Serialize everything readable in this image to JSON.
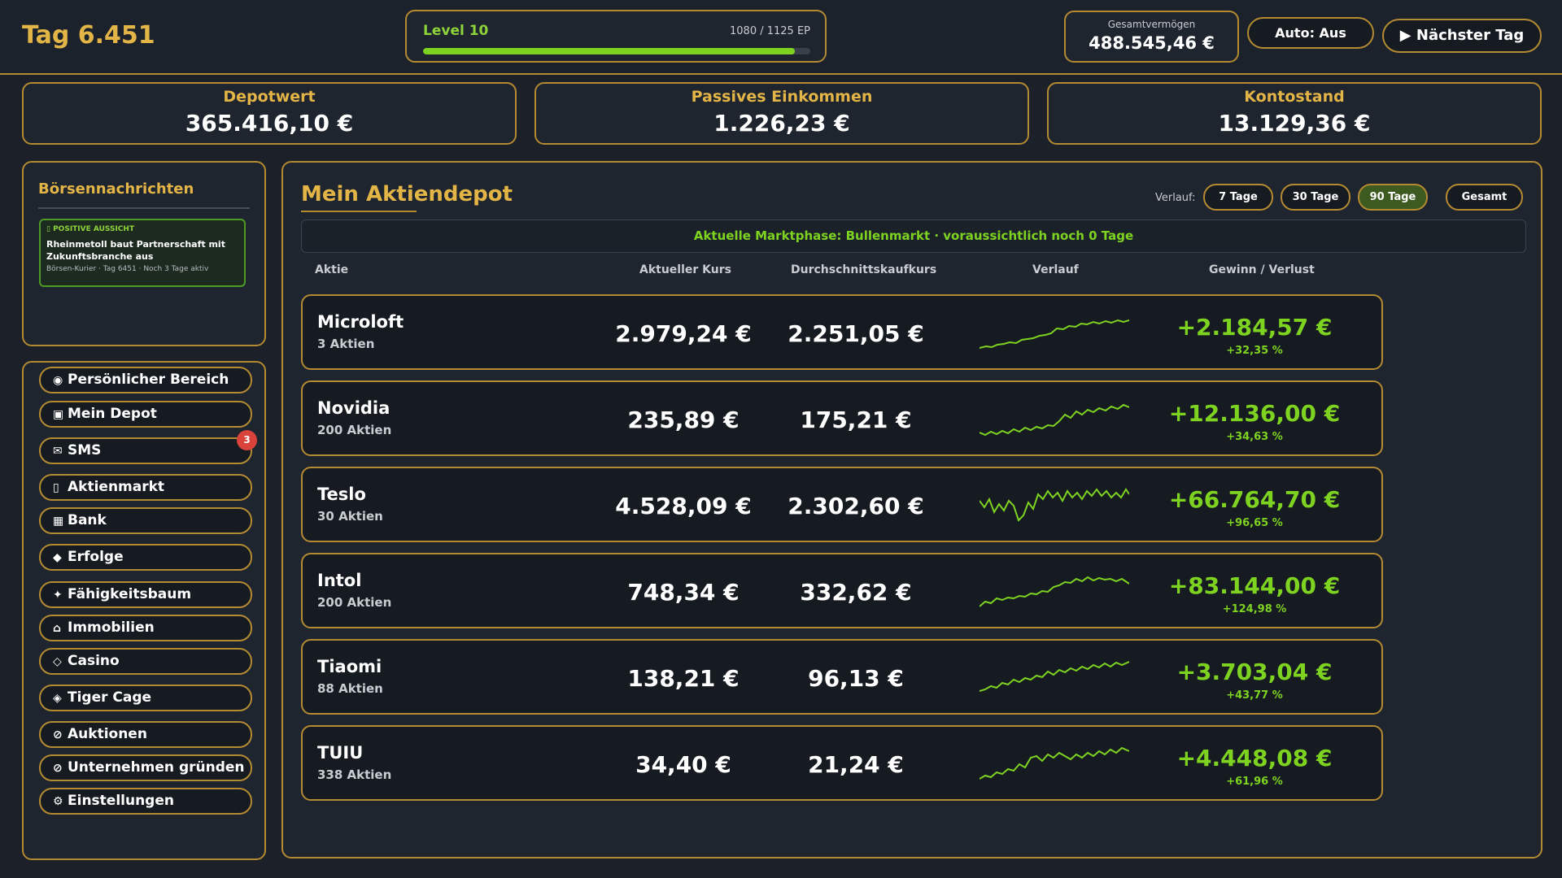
{
  "header": {
    "day_title": "Tag 6.451",
    "level_label": "Level 10",
    "level_ep": "1080 / 1125 EP",
    "level_progress": 0.96,
    "wealth_label": "Gesamtvermögen",
    "wealth_value": "488.545,46 €",
    "auto_label": "Auto: Aus",
    "next_day_label": "▶ Nächster Tag"
  },
  "stats": [
    {
      "label": "Depotwert",
      "value": "365.416,10 €"
    },
    {
      "label": "Passives Einkommen",
      "value": "1.226,23 €"
    },
    {
      "label": "Kontostand",
      "value": "13.129,36 €"
    }
  ],
  "news": {
    "title": "Börsennachrichten",
    "items": [
      {
        "tag": "▯ POSITIVE AUSSICHT",
        "headline": "Rheinmetoll baut Partnerschaft mit Zukunftsbranche aus",
        "meta": "Börsen-Kurier · Tag 6451 · Noch 3 Tage aktiv"
      }
    ]
  },
  "nav": {
    "items": [
      {
        "icon": "◉",
        "label": "Persönlicher Bereich"
      },
      {
        "icon": "▣",
        "label": "Mein Depot"
      },
      {
        "icon": "✉",
        "label": "SMS",
        "badge": "3"
      },
      {
        "icon": "▯",
        "label": "Aktienmarkt"
      },
      {
        "icon": "▦",
        "label": "Bank"
      },
      {
        "icon": "◆",
        "label": "Erfolge"
      },
      {
        "icon": "✦",
        "label": "Fähigkeitsbaum"
      },
      {
        "icon": "⌂",
        "label": "Immobilien"
      },
      {
        "icon": "◇",
        "label": "Casino"
      },
      {
        "icon": "◈",
        "label": "Tiger Cage"
      },
      {
        "icon": "⊘",
        "label": "Auktionen"
      },
      {
        "icon": "⊘",
        "label": "Unternehmen gründen"
      },
      {
        "icon": "⚙",
        "label": "Einstellungen"
      }
    ]
  },
  "depot": {
    "title": "Mein Aktiendepot",
    "range_label": "Verlauf:",
    "ranges": [
      "7 Tage",
      "30 Tage",
      "90 Tage",
      "Gesamt"
    ],
    "active_range": "90 Tage",
    "phase_text": "Aktuelle Marktphase: Bullenmarkt · voraussichtlich noch 0 Tage",
    "columns": [
      "Aktie",
      "Aktueller Kurs",
      "Durchschnittskaufkurs",
      "Verlauf",
      "Gewinn / Verlust"
    ],
    "stocks": [
      {
        "name": "Microloft",
        "qty": "3 Aktien",
        "price": "2.979,24 €",
        "avg": "2.251,05 €",
        "gain": "+2.184,57 €",
        "pct": "+32,35 %"
      },
      {
        "name": "Novidia",
        "qty": "200 Aktien",
        "price": "235,89 €",
        "avg": "175,21 €",
        "gain": "+12.136,00 €",
        "pct": "+34,63 %"
      },
      {
        "name": "Teslo",
        "qty": "30 Aktien",
        "price": "4.528,09 €",
        "avg": "2.302,60 €",
        "gain": "+66.764,70 €",
        "pct": "+96,65 %"
      },
      {
        "name": "Intol",
        "qty": "200 Aktien",
        "price": "748,34 €",
        "avg": "332,62 €",
        "gain": "+83.144,00 €",
        "pct": "+124,98 %"
      },
      {
        "name": "Tiaomi",
        "qty": "88 Aktien",
        "price": "138,21 €",
        "avg": "96,13 €",
        "gain": "+3.703,04 €",
        "pct": "+43,77 %"
      },
      {
        "name": "TUIU",
        "qty": "338 Aktien",
        "price": "34,40 €",
        "avg": "21,24 €",
        "gain": "+4.448,08 €",
        "pct": "+61,96 %"
      }
    ]
  },
  "colors": {
    "gold": "#b48a32",
    "gold_text": "#e3b446",
    "green": "#7ed321",
    "badge_red": "#d9433b",
    "background": "#1b2029"
  }
}
